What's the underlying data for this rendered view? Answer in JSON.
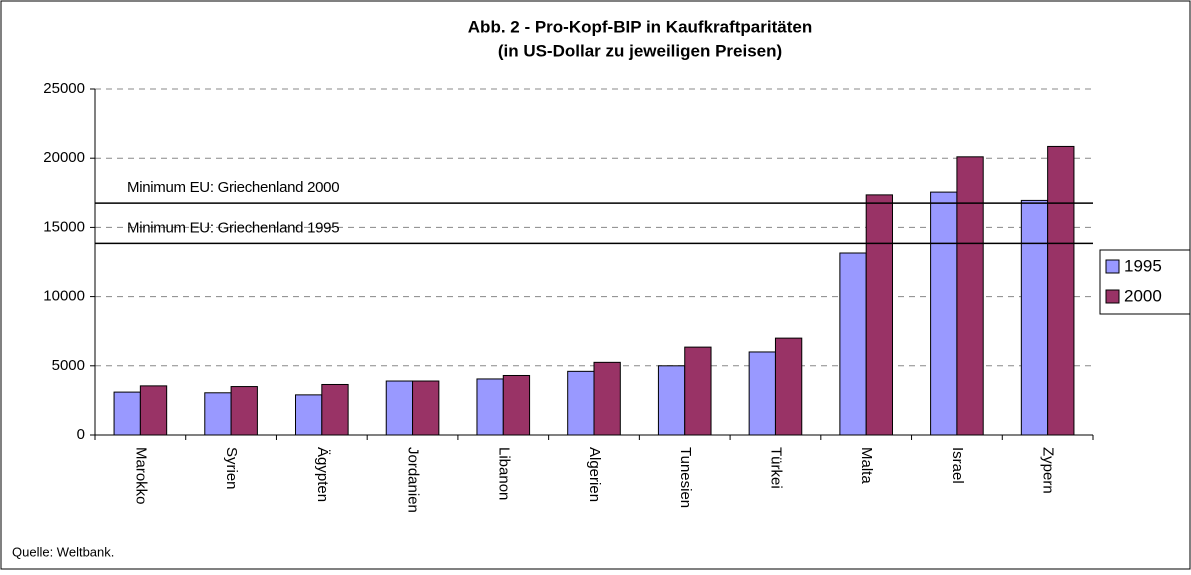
{
  "chart_data": {
    "type": "bar",
    "title": [
      "Abb. 2 - Pro-Kopf-BIP in Kaufkraftparitäten",
      "(in US-Dollar zu jeweiligen Preisen)"
    ],
    "categories": [
      "Marokko",
      "Syrien",
      "Ägypten",
      "Jordanien",
      "Libanon",
      "Algerien",
      "Tunesien",
      "Türkei",
      "Malta",
      "Israel",
      "Zypern"
    ],
    "series": [
      {
        "name": "1995",
        "color": "#9999ff",
        "values": [
          3100,
          3050,
          2900,
          3900,
          4050,
          4600,
          5000,
          6000,
          13150,
          17550,
          16950
        ]
      },
      {
        "name": "2000",
        "color": "#993366",
        "values": [
          3550,
          3500,
          3650,
          3900,
          4300,
          5250,
          6350,
          7000,
          17350,
          20100,
          20850
        ]
      }
    ],
    "reference_lines": [
      {
        "label": "Minimum EU: Griechenland 2000",
        "value": 16750
      },
      {
        "label": "Minimum EU: Griechenland 1995",
        "value": 13850
      }
    ],
    "ylim": [
      0,
      25000
    ],
    "yticks": [
      0,
      5000,
      10000,
      15000,
      20000,
      25000
    ],
    "grid": true,
    "legend": "right",
    "source": "Quelle: Weltbank."
  }
}
